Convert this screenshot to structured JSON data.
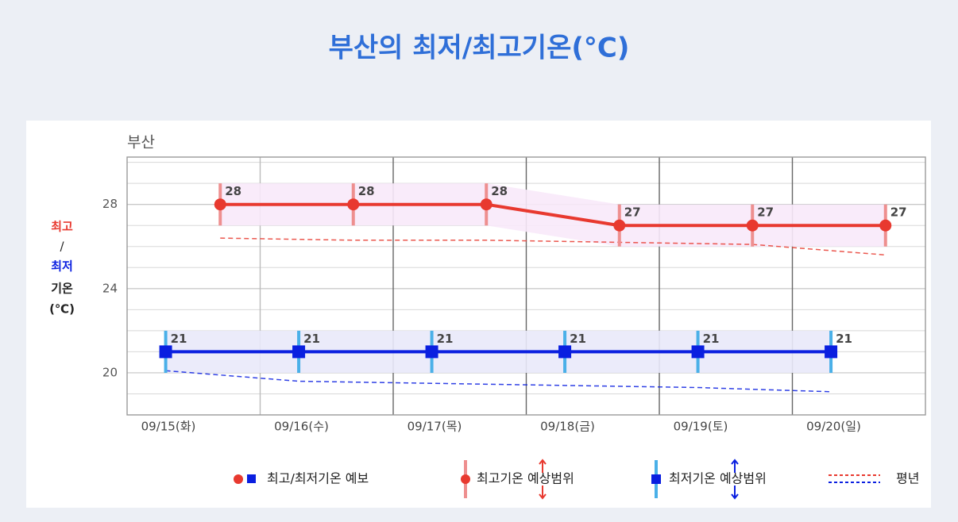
{
  "title": "부산의 최저/최고기온(°C)",
  "chart_data": {
    "type": "line",
    "subtitle": "부산",
    "y_label": [
      "최고",
      "/",
      "최저",
      "기온",
      "(℃)"
    ],
    "categories": [
      "09/15(화)",
      "09/16(수)",
      "09/17(목)",
      "09/18(금)",
      "09/19(토)",
      "09/20(일)"
    ],
    "ylim": [
      18,
      30.25
    ],
    "yticks": [
      20,
      24,
      28
    ],
    "y_minor_ticks": [
      18,
      19,
      20,
      21,
      22,
      23,
      24,
      25,
      26,
      27,
      28,
      29,
      30
    ],
    "grid": true,
    "series": [
      {
        "color": "#e8392f",
        "marker": "circle",
        "offset": 0.7,
        "values": [
          28,
          28,
          28,
          27,
          27,
          27
        ],
        "range_low": [
          27,
          27,
          27,
          26,
          26,
          26
        ],
        "range_high": [
          29,
          29,
          29,
          28,
          28,
          28
        ],
        "range_color": "#ee8f8f",
        "shade_color": "#f8e9fa",
        "normal": [
          26.4,
          26.3,
          26.3,
          26.2,
          26.1,
          25.6
        ]
      },
      {
        "color": "#0a1fe0",
        "marker": "square",
        "offset": 0.29,
        "values": [
          21,
          21,
          21,
          21,
          21,
          21
        ],
        "range_low": [
          20,
          20,
          20,
          20,
          20,
          20
        ],
        "range_high": [
          22,
          22,
          22,
          22,
          22,
          22
        ],
        "range_color": "#4ab0e8",
        "shade_color": "#e9e9fa",
        "normal": [
          20.1,
          19.6,
          19.5,
          19.4,
          19.3,
          19.1
        ]
      }
    ],
    "legend": [
      "최고/최저기온 예보",
      "최고기온 예상범위",
      "최저기온 예상범위",
      "평년"
    ]
  }
}
